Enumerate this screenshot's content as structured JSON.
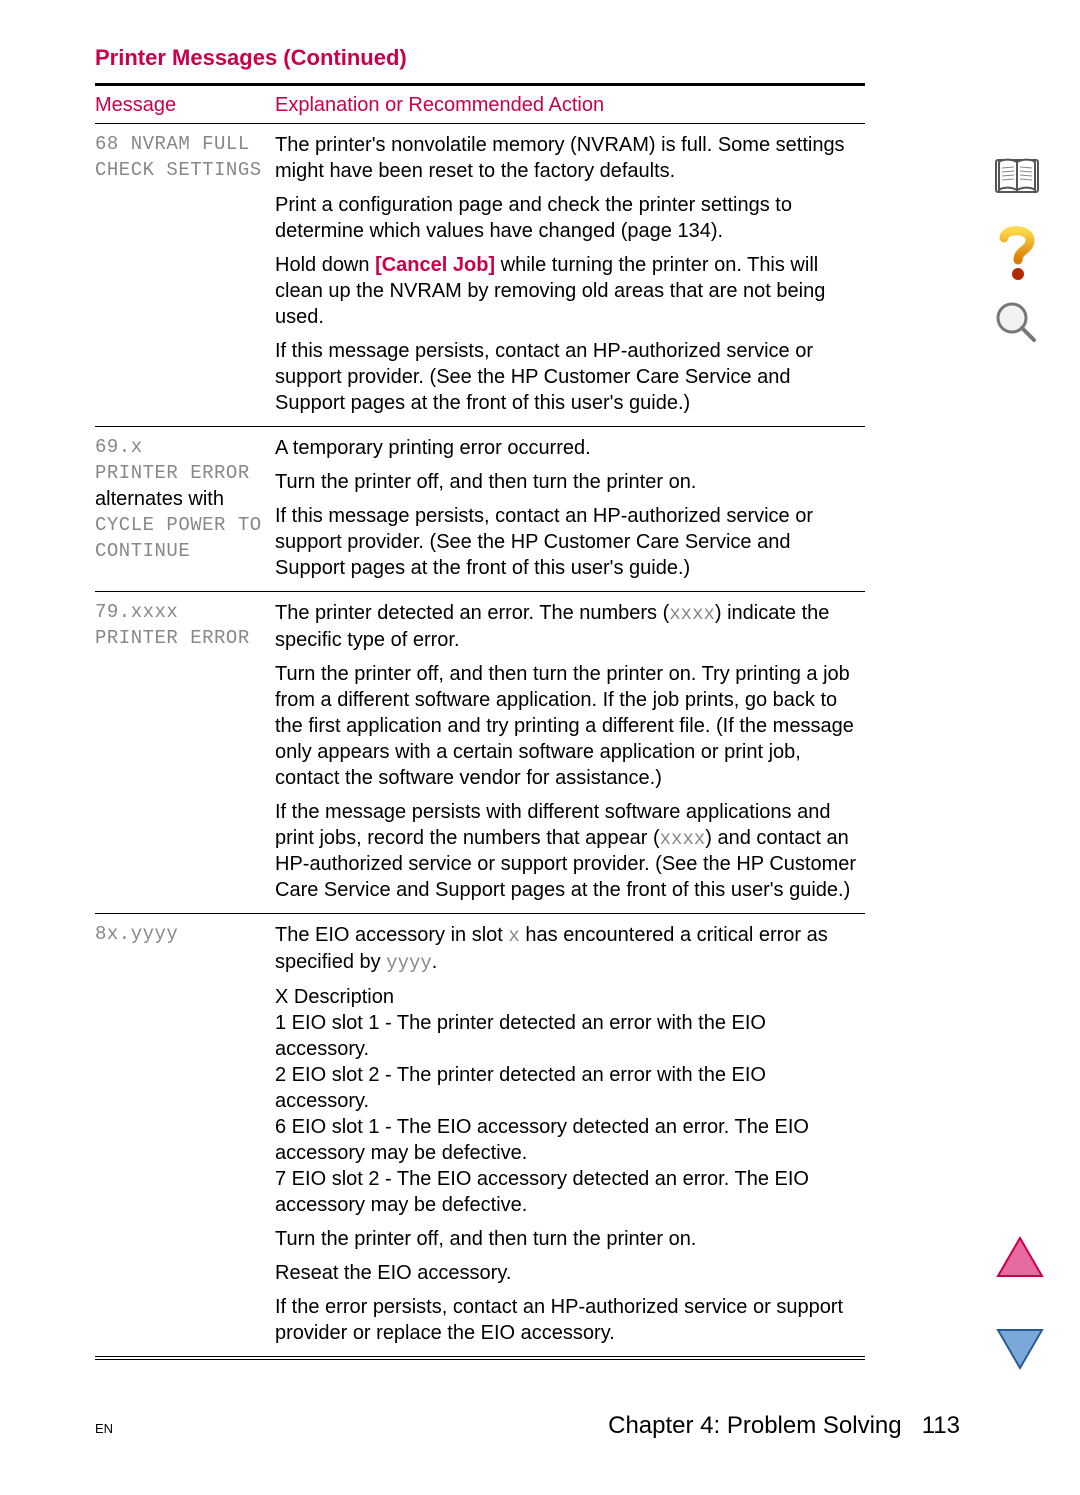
{
  "colors": {
    "ruby": "#c9004a",
    "text": "#000000",
    "mono_grey": "#888888",
    "icon_stroke": "#555555",
    "help_top": "#fdd84a",
    "help_bottom": "#d97c00",
    "help_ball": "#b02a00",
    "lens_fill": "#e6e6e6",
    "tri_up_fill": "#e46aa0",
    "tri_up_stroke": "#c9004a",
    "tri_down_fill": "#7aa8d8",
    "tri_down_stroke": "#2a5a9a"
  },
  "title": "Printer Messages (Continued)",
  "headers": {
    "message": "Message",
    "explanation": "Explanation or Recommended Action"
  },
  "rows": [
    {
      "message_lines": [
        {
          "text": "68 NVRAM FULL",
          "mono": true
        },
        {
          "text": "CHECK SETTINGS",
          "mono": true
        }
      ],
      "paragraphs": [
        {
          "segments": [
            {
              "t": "The printer's nonvolatile memory (NVRAM) is full. Some settings might have been reset to the factory defaults."
            }
          ]
        },
        {
          "segments": [
            {
              "t": "Print a configuration page and check the printer settings to determine which values have changed (page 134)."
            }
          ]
        },
        {
          "segments": [
            {
              "t": "Hold down "
            },
            {
              "t": "[Cancel Job]",
              "bold": true,
              "colored": true
            },
            {
              "t": " while turning the printer on. This will clean up the NVRAM by removing old areas that are not being used."
            }
          ]
        },
        {
          "segments": [
            {
              "t": "If this message persists, contact an HP-authorized service or support provider. (See the HP Customer Care Service and Support pages at the front of this user's guide.)"
            }
          ]
        }
      ]
    },
    {
      "message_lines": [
        {
          "text": "69.x",
          "mono": true
        },
        {
          "text": "PRINTER ERROR",
          "mono": true
        },
        {
          "text": "alternates with",
          "mono": false
        },
        {
          "text": "CYCLE POWER TO",
          "mono": true
        },
        {
          "text": "CONTINUE",
          "mono": true
        }
      ],
      "paragraphs": [
        {
          "segments": [
            {
              "t": "A temporary printing error occurred."
            }
          ]
        },
        {
          "segments": [
            {
              "t": "Turn the printer off, and then turn the printer on."
            }
          ]
        },
        {
          "segments": [
            {
              "t": "If this message persists, contact an HP-authorized service or support provider. (See the HP Customer Care Service and Support pages at the front of this user's guide.)"
            }
          ]
        }
      ]
    },
    {
      "message_lines": [
        {
          "text": "79.xxxx",
          "mono": true
        },
        {
          "text": "PRINTER ERROR",
          "mono": true
        }
      ],
      "paragraphs": [
        {
          "segments": [
            {
              "t": "The printer detected an error. The numbers ("
            },
            {
              "t": "xxxx",
              "inline_mono": true
            },
            {
              "t": ") indicate the specific type of error."
            }
          ]
        },
        {
          "segments": [
            {
              "t": "Turn the printer off, and then turn the printer on. Try printing a job from a different software application. If the job prints, go back to the first application and try printing a different file. (If the message only appears with a certain software application or print job, contact the software vendor for assistance.)"
            }
          ]
        },
        {
          "segments": [
            {
              "t": "If the message persists with different software applications and print jobs, record the numbers that appear ("
            },
            {
              "t": "xxxx",
              "inline_mono": true
            },
            {
              "t": ") and contact an HP-authorized service or support provider. (See the HP Customer Care Service and Support pages at the front of this user's guide.)"
            }
          ]
        }
      ]
    },
    {
      "message_lines": [
        {
          "text": "8x.yyyy",
          "mono": true
        }
      ],
      "paragraphs": [
        {
          "segments": [
            {
              "t": "The EIO accessory in slot "
            },
            {
              "t": "x",
              "inline_mono": true
            },
            {
              "t": " has encountered a critical error as specified by "
            },
            {
              "t": "yyyy",
              "inline_mono": true
            },
            {
              "t": "."
            }
          ]
        },
        {
          "segments": [
            {
              "t": "X Description\n1 EIO slot 1 - The printer detected an error with the EIO accessory.\n2 EIO slot 2 - The printer detected an error with the EIO accessory.\n6 EIO slot 1 - The EIO accessory detected an error. The EIO accessory may be defective.\n7 EIO slot 2 - The EIO accessory detected an error. The EIO accessory may be defective."
            }
          ],
          "preserve": true
        },
        {
          "segments": [
            {
              "t": "Turn the printer off, and then turn the printer on."
            }
          ]
        },
        {
          "segments": [
            {
              "t": "Reseat the EIO accessory."
            }
          ]
        },
        {
          "segments": [
            {
              "t": "If the error persists, contact an HP-authorized service or support provider or replace the EIO accessory."
            }
          ]
        }
      ]
    }
  ],
  "footer": {
    "en": "EN",
    "chapter": "Chapter 4:  Problem Solving",
    "page": "113"
  },
  "side_icons": {
    "book": "open-book-icon",
    "help": "help-icon",
    "search": "magnifier-icon"
  },
  "nav": {
    "up": "page-up-icon",
    "down": "page-down-icon"
  }
}
